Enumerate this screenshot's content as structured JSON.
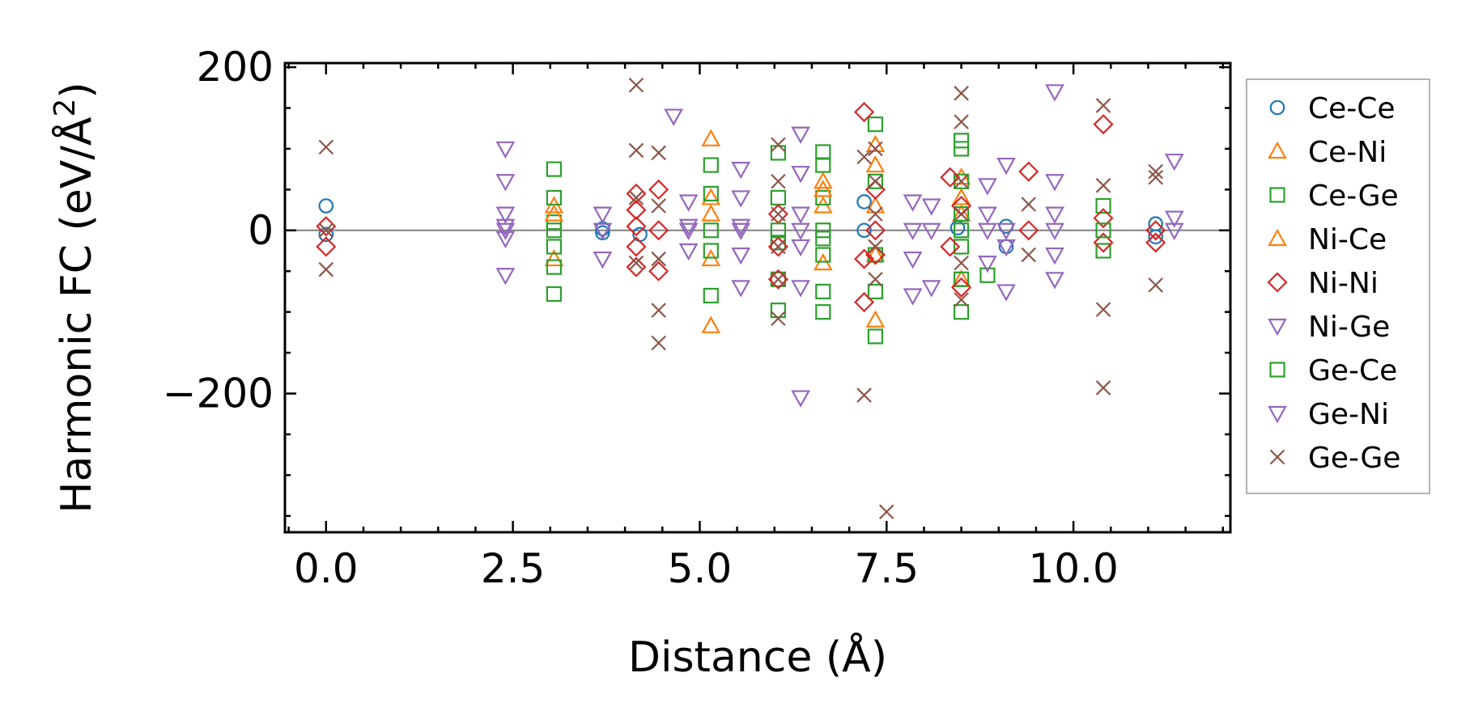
{
  "chart_data": {
    "type": "scatter",
    "title": "",
    "xlabel": "Distance (Å)",
    "ylabel": "Harmonic FC (eV/Å",
    "ylabel_sup": "2",
    "ylabel_close": ")",
    "xlim": [
      -0.55,
      12.1
    ],
    "ylim": [
      -370,
      205
    ],
    "xticks": [
      0.0,
      2.5,
      5.0,
      7.5,
      10.0
    ],
    "xtick_labels": [
      "0.0",
      "2.5",
      "5.0",
      "7.5",
      "10.0"
    ],
    "yticks": [
      -200,
      0,
      200
    ],
    "ytick_labels": [
      "−200",
      "0",
      "200"
    ],
    "reference_line_y": 0,
    "legend_position": "outside-right",
    "series": [
      {
        "name": "Ce-Ce",
        "marker": "circle",
        "color": "#1f77b4",
        "points": [
          [
            0,
            30
          ],
          [
            0,
            -5
          ],
          [
            3.7,
            2
          ],
          [
            3.7,
            -3
          ],
          [
            4.2,
            -5
          ],
          [
            7.2,
            35
          ],
          [
            7.2,
            0
          ],
          [
            8.45,
            3
          ],
          [
            9.1,
            -20
          ],
          [
            9.1,
            5
          ],
          [
            11.1,
            8
          ],
          [
            11.1,
            -8
          ]
        ]
      },
      {
        "name": "Ce-Ni",
        "marker": "triangle-up",
        "color": "#ff7f0e",
        "points": [
          [
            3.05,
            30
          ],
          [
            3.05,
            -35
          ],
          [
            5.15,
            112
          ],
          [
            5.15,
            40
          ],
          [
            5.15,
            -35
          ],
          [
            5.15,
            -117
          ],
          [
            6.65,
            60
          ],
          [
            6.65,
            30
          ],
          [
            6.65,
            -40
          ],
          [
            7.35,
            105
          ],
          [
            7.35,
            -110
          ],
          [
            7.35,
            30
          ],
          [
            7.35,
            -30
          ],
          [
            8.5,
            65
          ],
          [
            8.5,
            -60
          ],
          [
            8.5,
            20
          ]
        ]
      },
      {
        "name": "Ce-Ge",
        "marker": "square",
        "color": "#2ca02c",
        "points": [
          [
            3.05,
            75
          ],
          [
            3.05,
            40
          ],
          [
            3.05,
            10
          ],
          [
            3.05,
            -20
          ],
          [
            3.05,
            -45
          ],
          [
            3.05,
            -78
          ],
          [
            5.15,
            80
          ],
          [
            5.15,
            45
          ],
          [
            5.15,
            0
          ],
          [
            5.15,
            -25
          ],
          [
            5.15,
            -80
          ],
          [
            6.05,
            95
          ],
          [
            6.05,
            40
          ],
          [
            6.05,
            -15
          ],
          [
            6.05,
            -60
          ],
          [
            6.05,
            -98
          ],
          [
            6.65,
            96
          ],
          [
            6.65,
            80
          ],
          [
            6.65,
            40
          ],
          [
            6.65,
            0
          ],
          [
            6.65,
            -30
          ],
          [
            6.65,
            -75
          ],
          [
            6.65,
            -100
          ],
          [
            7.35,
            130
          ],
          [
            7.35,
            60
          ],
          [
            7.35,
            -30
          ],
          [
            7.35,
            -75
          ],
          [
            7.35,
            -130
          ],
          [
            8.5,
            110
          ],
          [
            8.5,
            100
          ],
          [
            8.5,
            60
          ],
          [
            8.5,
            20
          ],
          [
            8.5,
            -20
          ],
          [
            8.5,
            -60
          ],
          [
            8.5,
            -100
          ],
          [
            8.85,
            -55
          ],
          [
            10.4,
            30
          ],
          [
            10.4,
            -25
          ]
        ]
      },
      {
        "name": "Ni-Ce",
        "marker": "triangle-up",
        "color": "#ff7f0e",
        "points": [
          [
            3.05,
            20
          ],
          [
            5.15,
            20
          ],
          [
            6.65,
            50
          ],
          [
            7.35,
            80
          ],
          [
            8.5,
            40
          ]
        ]
      },
      {
        "name": "Ni-Ni",
        "marker": "diamond",
        "color": "#d62728",
        "points": [
          [
            0,
            5
          ],
          [
            0,
            -20
          ],
          [
            4.15,
            45
          ],
          [
            4.15,
            25
          ],
          [
            4.15,
            5
          ],
          [
            4.15,
            -20
          ],
          [
            4.15,
            -45
          ],
          [
            4.45,
            50
          ],
          [
            4.45,
            0
          ],
          [
            4.45,
            -50
          ],
          [
            6.05,
            20
          ],
          [
            6.05,
            -20
          ],
          [
            6.05,
            -60
          ],
          [
            7.2,
            145
          ],
          [
            7.2,
            -35
          ],
          [
            7.2,
            -88
          ],
          [
            7.35,
            50
          ],
          [
            7.35,
            0
          ],
          [
            7.35,
            -30
          ],
          [
            8.35,
            65
          ],
          [
            8.35,
            -20
          ],
          [
            8.5,
            30
          ],
          [
            8.5,
            -70
          ],
          [
            9.4,
            72
          ],
          [
            9.4,
            0
          ],
          [
            10.4,
            130
          ],
          [
            10.4,
            15
          ],
          [
            10.4,
            -15
          ],
          [
            11.1,
            0
          ],
          [
            11.1,
            -15
          ]
        ]
      },
      {
        "name": "Ni-Ge",
        "marker": "triangle-down",
        "color": "#9467bd",
        "points": [
          [
            2.4,
            100
          ],
          [
            2.4,
            60
          ],
          [
            2.4,
            20
          ],
          [
            2.4,
            5
          ],
          [
            2.4,
            -10
          ],
          [
            2.4,
            -55
          ],
          [
            3.7,
            20
          ],
          [
            3.7,
            -35
          ],
          [
            4.65,
            140
          ],
          [
            4.85,
            35
          ],
          [
            4.85,
            5
          ],
          [
            4.85,
            -25
          ],
          [
            5.55,
            75
          ],
          [
            5.55,
            40
          ],
          [
            5.55,
            5
          ],
          [
            5.55,
            -30
          ],
          [
            5.55,
            -70
          ],
          [
            6.35,
            118
          ],
          [
            6.35,
            70
          ],
          [
            6.35,
            20
          ],
          [
            6.35,
            -20
          ],
          [
            6.35,
            -70
          ],
          [
            6.35,
            -205
          ],
          [
            7.85,
            35
          ],
          [
            7.85,
            -35
          ],
          [
            7.85,
            -80
          ],
          [
            8.1,
            30
          ],
          [
            8.1,
            -70
          ],
          [
            8.85,
            55
          ],
          [
            8.85,
            20
          ],
          [
            8.85,
            -40
          ],
          [
            9.1,
            80
          ],
          [
            9.1,
            -20
          ],
          [
            9.1,
            -75
          ],
          [
            9.75,
            170
          ],
          [
            9.75,
            60
          ],
          [
            9.75,
            20
          ],
          [
            9.75,
            -30
          ],
          [
            9.75,
            -60
          ],
          [
            11.35,
            85
          ],
          [
            11.35,
            15
          ]
        ]
      },
      {
        "name": "Ge-Ce",
        "marker": "square",
        "color": "#2ca02c",
        "points": [
          [
            3.05,
            0
          ],
          [
            6.05,
            0
          ],
          [
            6.65,
            -10
          ],
          [
            8.5,
            0
          ],
          [
            10.4,
            0
          ]
        ]
      },
      {
        "name": "Ge-Ni",
        "marker": "triangle-down",
        "color": "#9467bd",
        "points": [
          [
            2.4,
            0
          ],
          [
            3.7,
            0
          ],
          [
            4.85,
            0
          ],
          [
            5.55,
            0
          ],
          [
            6.35,
            0
          ],
          [
            7.85,
            0
          ],
          [
            8.1,
            0
          ],
          [
            8.85,
            0
          ],
          [
            9.1,
            0
          ],
          [
            9.75,
            0
          ],
          [
            11.35,
            0
          ]
        ]
      },
      {
        "name": "Ge-Ge",
        "marker": "x",
        "color": "#8c564b",
        "points": [
          [
            0,
            102
          ],
          [
            0,
            -48
          ],
          [
            0,
            0
          ],
          [
            4.15,
            178
          ],
          [
            4.15,
            98
          ],
          [
            4.15,
            40
          ],
          [
            4.15,
            -40
          ],
          [
            4.45,
            95
          ],
          [
            4.45,
            30
          ],
          [
            4.45,
            -35
          ],
          [
            4.45,
            -98
          ],
          [
            4.45,
            -138
          ],
          [
            6.05,
            105
          ],
          [
            6.05,
            60
          ],
          [
            6.05,
            20
          ],
          [
            6.05,
            -20
          ],
          [
            6.05,
            -60
          ],
          [
            6.05,
            -108
          ],
          [
            7.2,
            90
          ],
          [
            7.2,
            -202
          ],
          [
            7.35,
            100
          ],
          [
            7.35,
            60
          ],
          [
            7.35,
            20
          ],
          [
            7.35,
            -20
          ],
          [
            7.35,
            -60
          ],
          [
            7.5,
            -345
          ],
          [
            8.5,
            168
          ],
          [
            8.5,
            133
          ],
          [
            8.5,
            60
          ],
          [
            8.5,
            20
          ],
          [
            8.5,
            -40
          ],
          [
            8.5,
            -85
          ],
          [
            9.4,
            32
          ],
          [
            9.4,
            -30
          ],
          [
            10.4,
            153
          ],
          [
            10.4,
            55
          ],
          [
            10.4,
            -97
          ],
          [
            10.4,
            -193
          ],
          [
            11.1,
            72
          ],
          [
            11.1,
            65
          ],
          [
            11.1,
            -67
          ]
        ]
      }
    ]
  }
}
